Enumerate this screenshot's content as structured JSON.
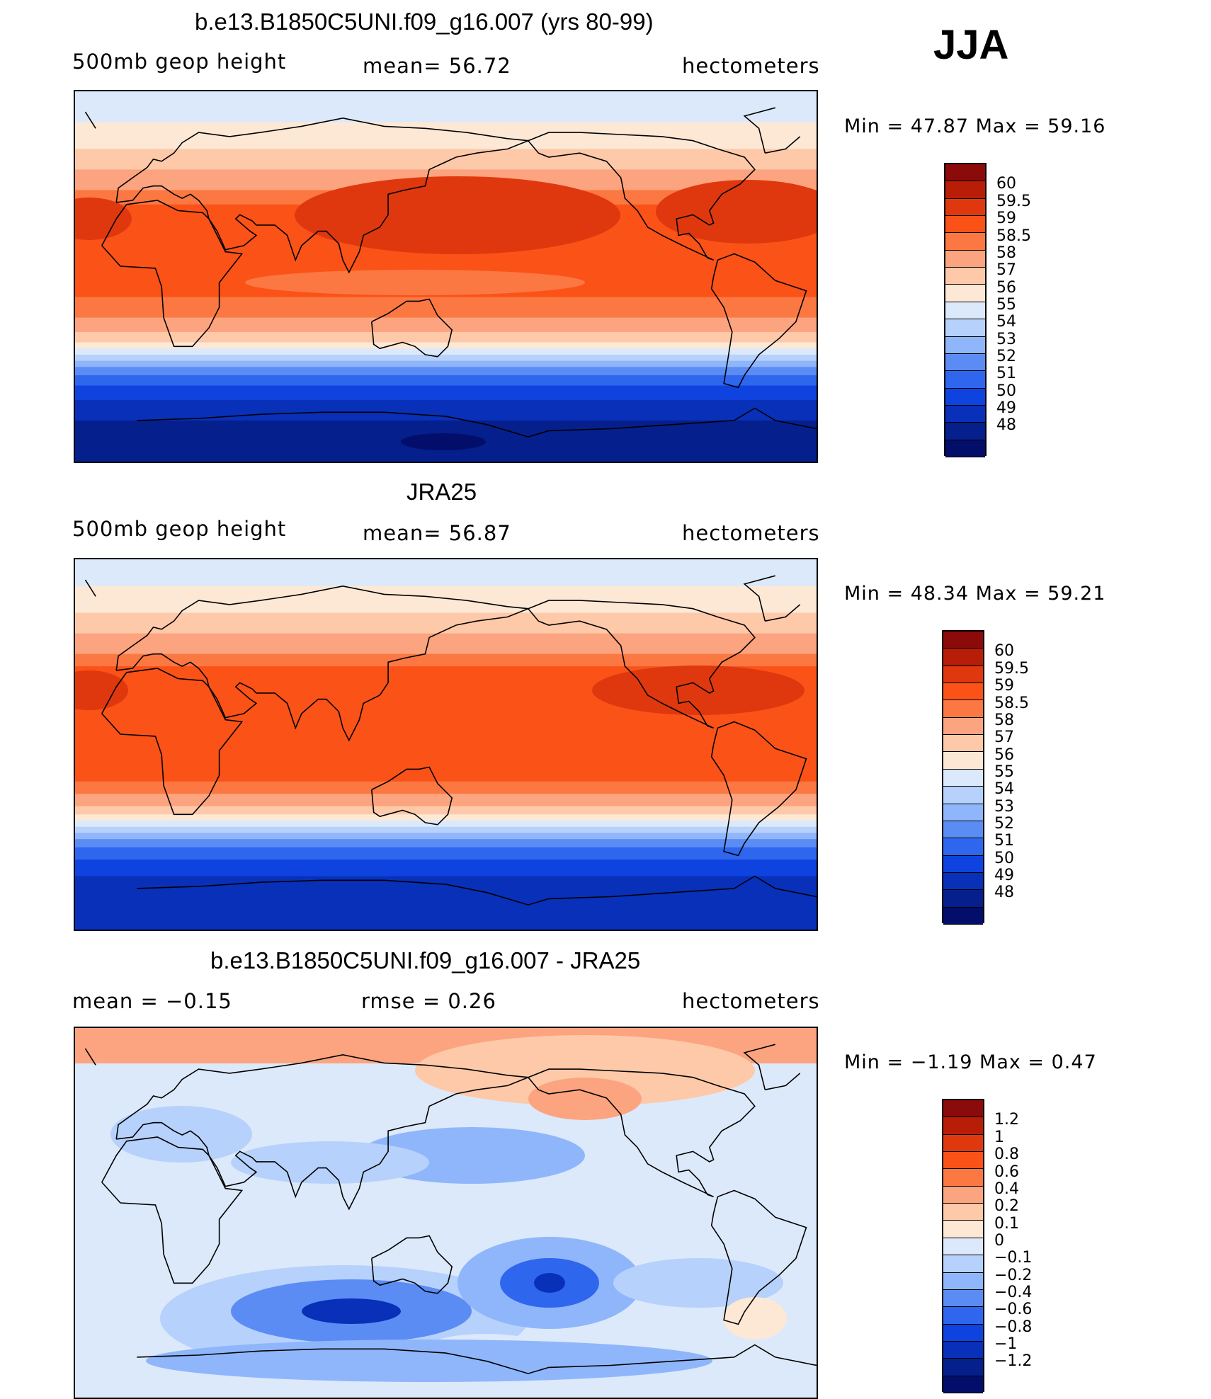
{
  "season": "JJA",
  "panels": [
    {
      "title": "b.e13.B1850C5UNI.f09_g16.007 (yrs 80-99)",
      "left_label": "500mb geop height",
      "center_label": "mean=  56.72",
      "right_label": "hectometers",
      "minmax": "Min =   47.87 Max =   59.16",
      "field_type": "model",
      "colorbar": {
        "colors": [
          "#8b0a0a",
          "#b81e07",
          "#e0380e",
          "#fb5218",
          "#fc7843",
          "#fca47f",
          "#fdc9a9",
          "#fde8d6",
          "#dce9fa",
          "#b6d1fb",
          "#8fb6fb",
          "#5b8cf4",
          "#2f66ee",
          "#0f43e0",
          "#0830b8",
          "#051f8c",
          "#020e6a"
        ],
        "labels": [
          "60",
          "59.5",
          "59",
          "58.5",
          "58",
          "57",
          "56",
          "55",
          "54",
          "53",
          "52",
          "51",
          "50",
          "49",
          "48"
        ]
      }
    },
    {
      "title": "JRA25",
      "left_label": "500mb geop height",
      "center_label": "mean=  56.87",
      "right_label": "hectometers",
      "minmax": "Min =   48.34 Max =   59.21",
      "field_type": "obs",
      "colorbar": {
        "colors": [
          "#8b0a0a",
          "#b81e07",
          "#e0380e",
          "#fb5218",
          "#fc7843",
          "#fca47f",
          "#fdc9a9",
          "#fde8d6",
          "#dce9fa",
          "#b6d1fb",
          "#8fb6fb",
          "#5b8cf4",
          "#2f66ee",
          "#0f43e0",
          "#0830b8",
          "#051f8c",
          "#020e6a"
        ],
        "labels": [
          "60",
          "59.5",
          "59",
          "58.5",
          "58",
          "57",
          "56",
          "55",
          "54",
          "53",
          "52",
          "51",
          "50",
          "49",
          "48"
        ]
      }
    },
    {
      "title": "b.e13.B1850C5UNI.f09_g16.007 - JRA25",
      "left_label": "mean =   −0.15",
      "center_label": "rmse =    0.26",
      "right_label": "hectometers",
      "minmax": "Min =   −1.19 Max =    0.47",
      "field_type": "diff",
      "colorbar": {
        "colors": [
          "#8b0a0a",
          "#b81e07",
          "#e0380e",
          "#fb5218",
          "#fc7843",
          "#fca47f",
          "#fdc9a9",
          "#fde8d6",
          "#dce9fa",
          "#b6d1fb",
          "#8fb6fb",
          "#5b8cf4",
          "#2f66ee",
          "#0f43e0",
          "#0830b8",
          "#051f8c",
          "#020e6a"
        ],
        "labels": [
          "1.2",
          "1",
          "0.8",
          "0.6",
          "0.4",
          "0.2",
          "0.1",
          "0",
          "−0.1",
          "−0.2",
          "−0.4",
          "−0.6",
          "−0.8",
          "−1",
          "−1.2"
        ]
      }
    }
  ]
}
